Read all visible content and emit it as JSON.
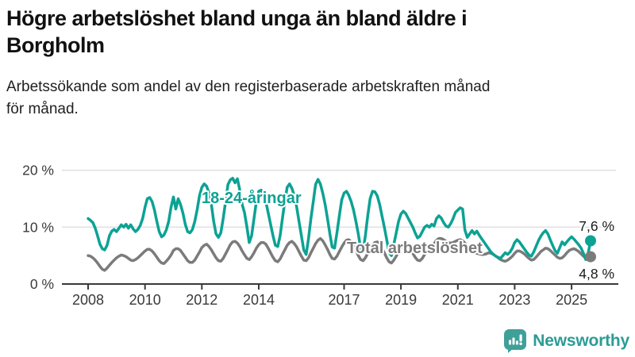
{
  "header": {
    "title_lines": [
      "Högre arbetslöshet bland unga än bland äldre i",
      "Borgholm"
    ],
    "subtitle_lines": [
      "Arbetssökande som andel av den registerbaserade arbetskraften månad",
      "för månad."
    ]
  },
  "chart_data": {
    "type": "line",
    "title": "Högre arbetslöshet bland unga än bland äldre i Borgholm",
    "subtitle": "Arbetssökande som andel av den registerbaserade arbetskraften månad för månad.",
    "unit": "%",
    "frequency": "monthly",
    "x_start": "2008-01",
    "x_end": "2025-09",
    "ylim": [
      0,
      20
    ],
    "ytick_values": [
      0,
      10,
      20
    ],
    "ytick_labels": [
      "0 %",
      "10 %",
      "20 %"
    ],
    "xtick_labels": [
      "2008",
      "2010",
      "2012",
      "2014",
      "2017",
      "2019",
      "2021",
      "2023",
      "2025"
    ],
    "grid": "horizontal",
    "legend": "inline",
    "colors": {
      "youth": "#0CA294",
      "total": "#7B7B7B",
      "gridline": "#E0E0E0",
      "axis": "#3A3A3A",
      "tick_text": "#3A3A3A",
      "end_label_text": "#1A1A1A"
    },
    "series": [
      {
        "name": "18-24-åringar",
        "color": "#0CA294",
        "end_label": "7,6 %",
        "end_value": 7.6,
        "values": [
          11.5,
          11.2,
          10.8,
          9.8,
          8.5,
          7.0,
          6.2,
          6.0,
          6.8,
          8.5,
          9.3,
          9.6,
          9.2,
          9.8,
          10.4,
          10.0,
          10.5,
          9.8,
          10.4,
          9.7,
          9.2,
          9.6,
          10.3,
          11.5,
          13.5,
          15.0,
          15.2,
          14.5,
          13.0,
          11.0,
          9.2,
          8.3,
          8.6,
          9.5,
          11.0,
          13.5,
          15.3,
          13.2,
          15.0,
          14.0,
          12.5,
          10.5,
          9.2,
          9.0,
          9.6,
          11.0,
          13.0,
          15.5,
          17.0,
          17.6,
          17.2,
          16.0,
          14.0,
          11.0,
          8.8,
          8.2,
          9.0,
          11.5,
          14.5,
          17.5,
          18.3,
          18.6,
          17.8,
          18.5,
          16.5,
          14.0,
          12.5,
          10.0,
          7.3,
          8.5,
          11.5,
          14.5,
          16.3,
          16.5,
          15.8,
          14.5,
          12.5,
          10.5,
          8.5,
          6.8,
          6.6,
          8.5,
          11.5,
          14.5,
          17.0,
          17.6,
          16.8,
          15.5,
          13.5,
          11.0,
          8.5,
          6.0,
          5.2,
          8.0,
          11.5,
          14.5,
          17.5,
          18.4,
          17.6,
          16.0,
          14.0,
          11.5,
          8.8,
          6.5,
          6.3,
          9.0,
          12.0,
          14.8,
          16.0,
          16.3,
          15.6,
          14.5,
          13.0,
          11.0,
          8.8,
          6.2,
          5.8,
          8.5,
          12.0,
          15.0,
          16.3,
          16.2,
          15.5,
          14.0,
          12.0,
          10.0,
          7.8,
          5.5,
          5.0,
          7.0,
          9.0,
          11.0,
          12.3,
          12.8,
          12.4,
          11.6,
          10.8,
          10.0,
          9.0,
          8.1,
          8.4,
          9.2,
          10.0,
          10.3,
          10.0,
          10.5,
          10.2,
          11.5,
          12.0,
          11.6,
          10.8,
          10.2,
          10.0,
          10.6,
          11.5,
          12.6,
          13.0,
          13.4,
          13.2,
          9.5,
          8.2,
          8.8,
          9.4,
          8.8,
          9.3,
          8.6,
          8.0,
          7.4,
          6.8,
          6.2,
          5.6,
          5.2,
          4.9,
          4.7,
          4.5,
          5.0,
          5.5,
          5.2,
          5.6,
          6.3,
          7.3,
          7.8,
          7.4,
          6.8,
          6.2,
          5.6,
          5.1,
          4.9,
          5.6,
          6.6,
          7.6,
          8.4,
          9.0,
          9.4,
          8.8,
          7.8,
          6.8,
          5.9,
          5.4,
          6.4,
          7.4,
          6.9,
          7.4,
          7.9,
          8.3,
          7.9,
          7.4,
          6.9,
          6.3,
          5.4,
          4.3,
          5.4,
          7.6
        ]
      },
      {
        "name": "Total arbetslöshet",
        "color": "#7B7B7B",
        "end_label": "4,8 %",
        "end_value": 4.8,
        "values": [
          5.0,
          4.9,
          4.6,
          4.2,
          3.7,
          3.1,
          2.6,
          2.4,
          2.8,
          3.3,
          3.8,
          4.2,
          4.6,
          4.9,
          5.1,
          5.0,
          4.8,
          4.5,
          4.2,
          4.1,
          4.3,
          4.6,
          5.0,
          5.4,
          5.8,
          6.1,
          6.1,
          5.8,
          5.3,
          4.7,
          4.1,
          3.7,
          3.6,
          4.0,
          4.5,
          5.1,
          5.9,
          6.2,
          6.2,
          5.9,
          5.3,
          4.7,
          4.1,
          3.8,
          3.8,
          4.2,
          4.9,
          5.6,
          6.4,
          6.8,
          7.0,
          6.6,
          6.0,
          5.3,
          4.6,
          4.1,
          4.0,
          4.5,
          5.3,
          6.1,
          6.9,
          7.4,
          7.5,
          7.2,
          6.6,
          5.8,
          5.1,
          4.5,
          4.3,
          4.8,
          5.5,
          6.3,
          6.9,
          7.3,
          7.3,
          7.0,
          6.3,
          5.5,
          4.7,
          4.1,
          3.9,
          4.4,
          5.2,
          6.0,
          6.8,
          7.3,
          7.5,
          7.1,
          6.5,
          5.7,
          4.9,
          4.2,
          4.1,
          4.6,
          5.5,
          6.3,
          7.1,
          7.7,
          8.0,
          7.6,
          6.9,
          6.1,
          5.2,
          4.5,
          4.4,
          4.9,
          5.7,
          6.5,
          7.2,
          7.7,
          7.8,
          7.4,
          6.7,
          5.9,
          5.0,
          4.3,
          4.1,
          4.6,
          5.4,
          6.2,
          6.9,
          7.3,
          7.4,
          7.0,
          6.3,
          5.5,
          4.6,
          3.9,
          3.7,
          4.2,
          4.9,
          5.7,
          6.4,
          6.8,
          6.9,
          6.6,
          6.1,
          5.4,
          4.7,
          4.2,
          4.1,
          4.5,
          5.2,
          5.9,
          6.4,
          6.7,
          7.1,
          7.7,
          8.0,
          8.0,
          7.8,
          7.5,
          7.3,
          7.2,
          7.3,
          7.5,
          7.7,
          7.8,
          7.6,
          7.2,
          6.7,
          6.2,
          5.8,
          5.5,
          5.4,
          5.3,
          5.2,
          5.2,
          5.3,
          5.5,
          5.4,
          5.2,
          4.9,
          4.6,
          4.3,
          4.1,
          4.0,
          4.2,
          4.5,
          4.9,
          5.4,
          5.8,
          5.8,
          5.6,
          5.3,
          4.9,
          4.5,
          4.2,
          4.3,
          4.7,
          5.2,
          5.7,
          6.0,
          6.3,
          6.2,
          5.9,
          5.5,
          5.1,
          4.7,
          4.5,
          4.6,
          5.0,
          5.5,
          5.9,
          6.1,
          6.2,
          6.0,
          5.7,
          5.3,
          4.9,
          4.5,
          4.4,
          4.8
        ]
      }
    ]
  },
  "footer": {
    "brand": "Newsworthy",
    "logo_icon": "bar-chart-speech-bubble-icon",
    "brand_color": "#2B9C95",
    "icon_color": "#3FA09A"
  }
}
